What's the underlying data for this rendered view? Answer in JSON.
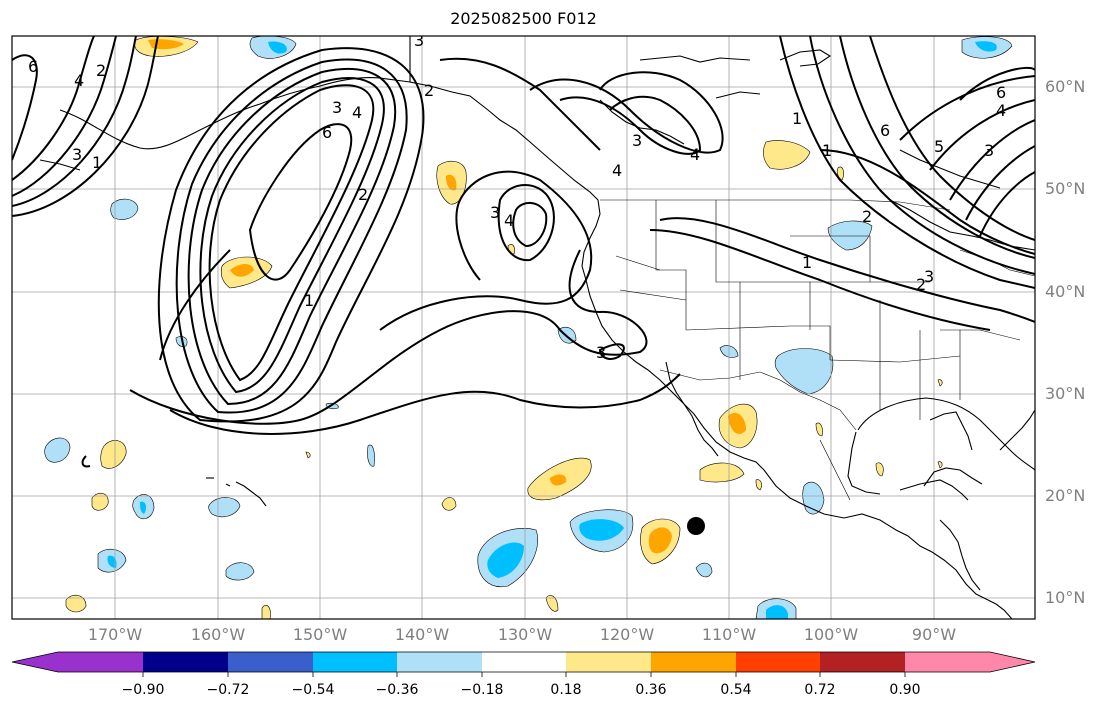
{
  "title": "2025082500 F012",
  "lat_labels": [
    "60°N",
    "50°N",
    "40°N",
    "30°N",
    "20°N",
    "10°N"
  ],
  "lon_labels": [
    "170°W",
    "160°W",
    "150°W",
    "140°W",
    "130°W",
    "120°W",
    "110°W",
    "100°W",
    "90°W"
  ],
  "colorbar": {
    "ticks": [
      "−0.90",
      "−0.72",
      "−0.54",
      "−0.36",
      "−0.18",
      "0.18",
      "0.36",
      "0.54",
      "0.72",
      "0.90"
    ],
    "colors": [
      "#9932cc",
      "#00008b",
      "#3a5fcd",
      "#00bfff",
      "#b0e0f8",
      "#ffffff",
      "#ffe88a",
      "#ffa500",
      "#ff4000",
      "#b22222",
      "#ff88aa"
    ]
  },
  "contour_labels": [
    "6",
    "4",
    "2",
    "3",
    "1",
    "3",
    "4",
    "6",
    "2",
    "1",
    "3",
    "4",
    "3",
    "4",
    "3",
    "2",
    "4",
    "3",
    "1",
    "6",
    "4",
    "5",
    "3",
    "1",
    "2",
    "6",
    "2",
    "3",
    "1"
  ]
}
